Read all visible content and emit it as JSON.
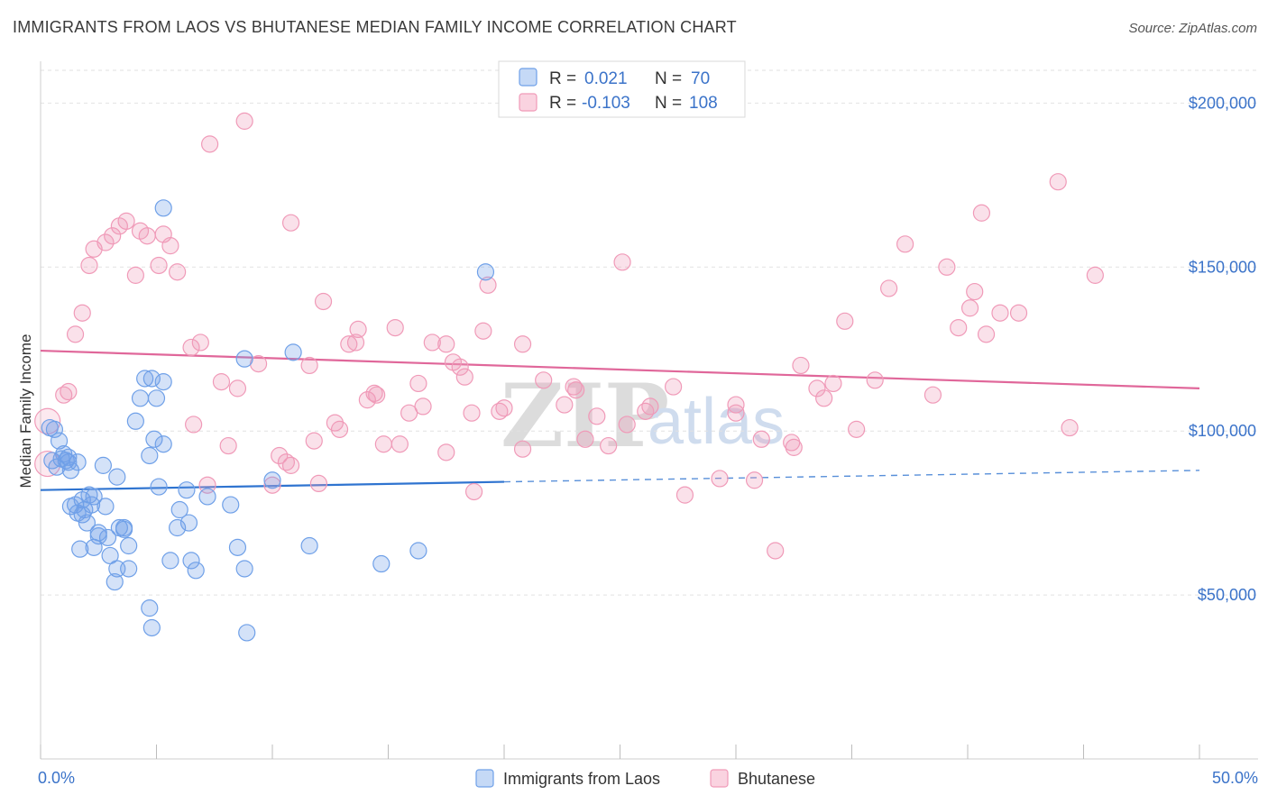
{
  "title": "IMMIGRANTS FROM LAOS VS BHUTANESE MEDIAN FAMILY INCOME CORRELATION CHART",
  "source": "Source: ZipAtlas.com",
  "watermark": {
    "zip": "ZIP",
    "atlas": "atlas"
  },
  "colors": {
    "laos": "#6fa0e8",
    "laos_line": "#2f74d0",
    "bhutanese": "#f09ab8",
    "bhutanese_line": "#e0679a",
    "tick": "#3b73c9"
  },
  "legend": {
    "rows": [
      {
        "r_label": "R = ",
        "r_value": " 0.021",
        "n_label": "N = ",
        "n_value": " 70"
      },
      {
        "r_label": "R = ",
        "r_value": "-0.103",
        "n_label": "N = ",
        "n_value": "108"
      }
    ]
  },
  "chart_data": {
    "type": "scatter",
    "title": "IMMIGRANTS FROM LAOS VS BHUTANESE MEDIAN FAMILY INCOME CORRELATION CHART",
    "xlabel": "",
    "ylabel": "Median Family Income",
    "xlim": [
      0,
      50
    ],
    "ylim": [
      0,
      210000
    ],
    "x_tick_labels": [
      "0.0%",
      "50.0%"
    ],
    "y_ticks": [
      50000,
      100000,
      150000,
      200000
    ],
    "y_tick_labels": [
      "$50,000",
      "$100,000",
      "$150,000",
      "$200,000"
    ],
    "grid": "horizontal dashed",
    "legend_position": "top-center",
    "series": [
      {
        "name": "Immigrants from Laos",
        "r": 0.021,
        "n": 70,
        "trend": {
          "x": [
            0,
            20
          ],
          "y": [
            82000,
            84500
          ],
          "dashed_to": [
            50,
            88000
          ]
        },
        "points": [
          [
            0.4,
            101000
          ],
          [
            0.6,
            100500
          ],
          [
            0.8,
            97000
          ],
          [
            0.5,
            91000
          ],
          [
            0.7,
            89000
          ],
          [
            0.9,
            91500
          ],
          [
            1.0,
            93000
          ],
          [
            1.1,
            91000
          ],
          [
            1.2,
            90500
          ],
          [
            1.3,
            88000
          ],
          [
            1.6,
            90500
          ],
          [
            1.3,
            77000
          ],
          [
            1.5,
            77500
          ],
          [
            1.6,
            75000
          ],
          [
            1.8,
            79000
          ],
          [
            1.8,
            74500
          ],
          [
            1.9,
            76000
          ],
          [
            2.0,
            72000
          ],
          [
            2.1,
            80500
          ],
          [
            2.2,
            77500
          ],
          [
            2.3,
            80000
          ],
          [
            2.8,
            77000
          ],
          [
            2.7,
            89500
          ],
          [
            3.3,
            86000
          ],
          [
            2.5,
            68000
          ],
          [
            2.9,
            67500
          ],
          [
            3.4,
            70500
          ],
          [
            3.6,
            70500
          ],
          [
            1.7,
            64000
          ],
          [
            2.3,
            64500
          ],
          [
            3.0,
            62000
          ],
          [
            3.3,
            58000
          ],
          [
            3.8,
            65000
          ],
          [
            3.8,
            58000
          ],
          [
            3.2,
            54000
          ],
          [
            4.7,
            46000
          ],
          [
            4.8,
            40000
          ],
          [
            4.5,
            116000
          ],
          [
            4.8,
            116000
          ],
          [
            5.3,
            115000
          ],
          [
            5.0,
            110000
          ],
          [
            4.1,
            103000
          ],
          [
            4.3,
            110000
          ],
          [
            4.9,
            97500
          ],
          [
            4.7,
            92500
          ],
          [
            5.3,
            96000
          ],
          [
            5.1,
            83000
          ],
          [
            6.3,
            82000
          ],
          [
            6.0,
            76000
          ],
          [
            6.4,
            72000
          ],
          [
            5.9,
            70500
          ],
          [
            7.2,
            80000
          ],
          [
            8.2,
            77500
          ],
          [
            5.6,
            60500
          ],
          [
            6.5,
            60500
          ],
          [
            6.7,
            57500
          ],
          [
            8.5,
            64500
          ],
          [
            8.8,
            58000
          ],
          [
            8.8,
            122000
          ],
          [
            8.9,
            38500
          ],
          [
            10.0,
            85000
          ],
          [
            10.9,
            124000
          ],
          [
            11.6,
            65000
          ],
          [
            14.7,
            59500
          ],
          [
            16.3,
            63500
          ],
          [
            19.2,
            148500
          ],
          [
            5.3,
            168000
          ],
          [
            2.5,
            69000
          ],
          [
            1.2,
            92000
          ],
          [
            3.6,
            70000
          ]
        ]
      },
      {
        "name": "Bhutanese",
        "r": -0.103,
        "n": 108,
        "trend": {
          "x": [
            0,
            50
          ],
          "y": [
            124500,
            113000
          ]
        },
        "points": [
          [
            0.3,
            103000
          ],
          [
            0.3,
            90000
          ],
          [
            1.0,
            111000
          ],
          [
            1.2,
            112000
          ],
          [
            1.5,
            129500
          ],
          [
            1.8,
            136000
          ],
          [
            2.1,
            150500
          ],
          [
            2.3,
            155500
          ],
          [
            2.8,
            157500
          ],
          [
            3.1,
            159500
          ],
          [
            3.4,
            162500
          ],
          [
            3.7,
            164000
          ],
          [
            4.1,
            147500
          ],
          [
            4.3,
            161000
          ],
          [
            4.6,
            159500
          ],
          [
            5.1,
            150500
          ],
          [
            5.3,
            160000
          ],
          [
            5.6,
            156500
          ],
          [
            5.9,
            148500
          ],
          [
            6.5,
            125500
          ],
          [
            6.6,
            102000
          ],
          [
            6.9,
            127000
          ],
          [
            7.2,
            83500
          ],
          [
            7.3,
            187500
          ],
          [
            7.8,
            115000
          ],
          [
            8.1,
            95500
          ],
          [
            8.5,
            113000
          ],
          [
            8.8,
            194500
          ],
          [
            9.4,
            120500
          ],
          [
            10.0,
            83500
          ],
          [
            10.3,
            92500
          ],
          [
            10.6,
            90500
          ],
          [
            10.8,
            89500
          ],
          [
            10.8,
            163500
          ],
          [
            11.6,
            120000
          ],
          [
            11.8,
            97000
          ],
          [
            12.0,
            84000
          ],
          [
            12.2,
            139500
          ],
          [
            12.7,
            102500
          ],
          [
            12.9,
            100500
          ],
          [
            13.3,
            126500
          ],
          [
            13.6,
            127000
          ],
          [
            13.7,
            131000
          ],
          [
            14.1,
            109500
          ],
          [
            14.4,
            111500
          ],
          [
            14.5,
            111000
          ],
          [
            14.8,
            96000
          ],
          [
            15.3,
            131500
          ],
          [
            15.5,
            96000
          ],
          [
            15.9,
            105500
          ],
          [
            16.3,
            114500
          ],
          [
            16.5,
            107500
          ],
          [
            16.9,
            127000
          ],
          [
            17.5,
            126500
          ],
          [
            17.5,
            93500
          ],
          [
            17.8,
            121000
          ],
          [
            18.1,
            119500
          ],
          [
            18.3,
            116500
          ],
          [
            18.6,
            105500
          ],
          [
            18.7,
            81500
          ],
          [
            19.1,
            130500
          ],
          [
            19.3,
            144500
          ],
          [
            19.8,
            106000
          ],
          [
            20.0,
            107000
          ],
          [
            20.8,
            126500
          ],
          [
            20.8,
            94500
          ],
          [
            21.7,
            115500
          ],
          [
            22.6,
            108000
          ],
          [
            23.0,
            113500
          ],
          [
            23.1,
            112500
          ],
          [
            23.5,
            97500
          ],
          [
            24.0,
            104500
          ],
          [
            24.5,
            95500
          ],
          [
            25.1,
            151500
          ],
          [
            25.3,
            102000
          ],
          [
            26.1,
            106000
          ],
          [
            26.3,
            107500
          ],
          [
            27.3,
            113500
          ],
          [
            27.8,
            80500
          ],
          [
            29.3,
            85500
          ],
          [
            30.0,
            105500
          ],
          [
            30.8,
            85000
          ],
          [
            31.1,
            97500
          ],
          [
            31.7,
            63500
          ],
          [
            32.5,
            95000
          ],
          [
            32.8,
            120000
          ],
          [
            33.5,
            113000
          ],
          [
            33.8,
            110000
          ],
          [
            34.2,
            114500
          ],
          [
            34.7,
            133500
          ],
          [
            35.2,
            100500
          ],
          [
            36.0,
            115500
          ],
          [
            36.6,
            143500
          ],
          [
            37.3,
            157000
          ],
          [
            38.5,
            111000
          ],
          [
            39.1,
            150000
          ],
          [
            39.6,
            131500
          ],
          [
            40.1,
            137500
          ],
          [
            40.3,
            142500
          ],
          [
            40.6,
            166500
          ],
          [
            40.8,
            129500
          ],
          [
            41.4,
            136000
          ],
          [
            42.2,
            136000
          ],
          [
            43.9,
            176000
          ],
          [
            44.4,
            101000
          ],
          [
            45.5,
            147500
          ],
          [
            30.0,
            108000
          ],
          [
            32.4,
            96500
          ]
        ]
      }
    ]
  },
  "bottom_legend": [
    {
      "label": "Immigrants from Laos"
    },
    {
      "label": "Bhutanese"
    }
  ]
}
